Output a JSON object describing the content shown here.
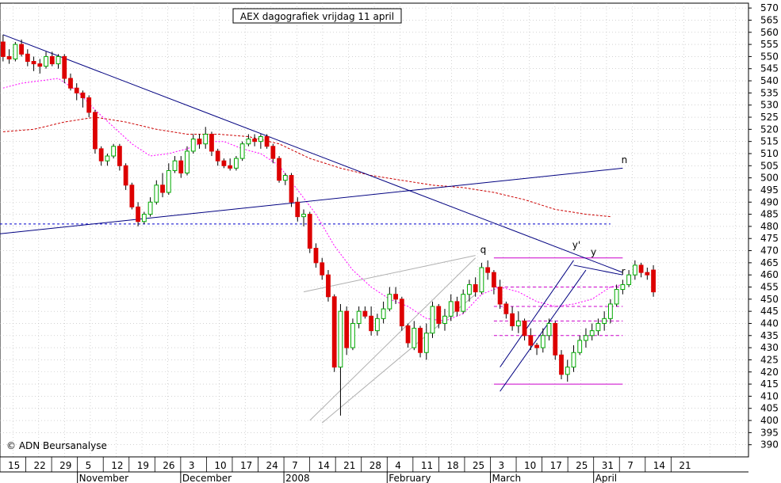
{
  "chart_data": {
    "type": "candlestick",
    "title": "AEX dagografiek vrijdag 11 april",
    "watermark": "© ADN Beursanalyse",
    "y_axis": {
      "min": 385,
      "max": 572,
      "side": "right",
      "ticks": [
        390,
        395,
        400,
        405,
        410,
        415,
        420,
        425,
        430,
        435,
        440,
        445,
        450,
        455,
        460,
        465,
        470,
        475,
        480,
        485,
        490,
        495,
        500,
        505,
        510,
        515,
        520,
        525,
        530,
        535,
        540,
        545,
        550,
        555,
        560,
        565,
        570
      ]
    },
    "x_axis": {
      "day_ticks": [
        "15",
        "22",
        "29",
        "5",
        "12",
        "19",
        "26",
        "3",
        "10",
        "17",
        "24",
        "7",
        "14",
        "21",
        "28",
        "4",
        "11",
        "18",
        "25",
        "3",
        "10",
        "17",
        "25",
        "31",
        "7",
        "14",
        "21"
      ],
      "month_labels": [
        "November",
        "December",
        "2008",
        "February",
        "March",
        "April"
      ],
      "month_start_tick_index": [
        3,
        7,
        11,
        15,
        19,
        23
      ],
      "right_pad_ticks": 2
    },
    "grid": true,
    "colors": {
      "up": "#00aa00",
      "down": "#dd0000",
      "trend": "#000080",
      "ma_short": "#ff00ff",
      "ma_long": "#cc0000",
      "horizontal": "#cc00cc",
      "dotted_blue": "#0000cc",
      "channel": "#b0b0b0"
    },
    "candles_note": "approximate daily OHLC read from chart",
    "candles": [
      [
        556,
        559,
        548,
        550
      ],
      [
        550,
        553,
        547,
        549
      ],
      [
        549,
        556,
        548,
        555
      ],
      [
        555,
        557,
        550,
        551
      ],
      [
        551,
        553,
        546,
        548
      ],
      [
        548,
        550,
        544,
        547
      ],
      [
        547,
        549,
        543,
        546
      ],
      [
        546,
        552,
        545,
        550
      ],
      [
        550,
        552,
        546,
        547
      ],
      [
        547,
        551,
        545,
        550
      ],
      [
        550,
        551,
        539,
        541
      ],
      [
        541,
        543,
        536,
        537
      ],
      [
        537,
        539,
        532,
        535
      ],
      [
        535,
        536,
        529,
        533
      ],
      [
        533,
        534,
        525,
        527
      ],
      [
        527,
        528,
        510,
        512
      ],
      [
        512,
        513,
        505,
        507
      ],
      [
        507,
        510,
        505,
        509
      ],
      [
        509,
        514,
        508,
        513
      ],
      [
        513,
        514,
        503,
        505
      ],
      [
        505,
        506,
        495,
        497
      ],
      [
        497,
        498,
        487,
        488
      ],
      [
        488,
        490,
        480,
        482
      ],
      [
        482,
        486,
        481,
        485
      ],
      [
        485,
        492,
        484,
        490
      ],
      [
        490,
        499,
        489,
        497
      ],
      [
        497,
        502,
        492,
        494
      ],
      [
        494,
        506,
        493,
        503
      ],
      [
        503,
        509,
        502,
        507
      ],
      [
        507,
        509,
        500,
        502
      ],
      [
        502,
        513,
        501,
        511
      ],
      [
        511,
        518,
        510,
        516
      ],
      [
        516,
        518,
        512,
        514
      ],
      [
        514,
        521,
        512,
        518
      ],
      [
        518,
        519,
        509,
        511
      ],
      [
        511,
        512,
        505,
        507
      ],
      [
        507,
        508,
        504,
        505
      ],
      [
        505,
        508,
        503,
        504
      ],
      [
        504,
        509,
        503,
        508
      ],
      [
        508,
        515,
        507,
        514
      ],
      [
        514,
        518,
        513,
        516
      ],
      [
        516,
        518,
        513,
        515
      ],
      [
        515,
        518,
        512,
        517
      ],
      [
        517,
        518,
        512,
        513
      ],
      [
        513,
        514,
        506,
        508
      ],
      [
        508,
        509,
        498,
        499
      ],
      [
        499,
        502,
        497,
        501
      ],
      [
        501,
        502,
        488,
        490
      ],
      [
        490,
        492,
        482,
        484
      ],
      [
        484,
        487,
        480,
        485
      ],
      [
        485,
        486,
        469,
        471
      ],
      [
        471,
        473,
        463,
        465
      ],
      [
        465,
        467,
        458,
        460
      ],
      [
        460,
        462,
        449,
        451
      ],
      [
        451,
        452,
        420,
        422
      ],
      [
        422,
        448,
        402,
        445
      ],
      [
        445,
        447,
        427,
        430
      ],
      [
        430,
        442,
        429,
        440
      ],
      [
        440,
        447,
        438,
        445
      ],
      [
        445,
        447,
        442,
        443
      ],
      [
        443,
        447,
        435,
        437
      ],
      [
        437,
        444,
        435,
        442
      ],
      [
        442,
        449,
        440,
        446
      ],
      [
        446,
        455,
        445,
        452
      ],
      [
        452,
        455,
        448,
        450
      ],
      [
        450,
        451,
        437,
        439
      ],
      [
        439,
        440,
        430,
        432
      ],
      [
        430,
        441,
        429,
        438
      ],
      [
        438,
        439,
        426,
        428
      ],
      [
        428,
        440,
        425,
        436
      ],
      [
        436,
        449,
        434,
        447
      ],
      [
        447,
        448,
        438,
        440
      ],
      [
        440,
        446,
        437,
        443
      ],
      [
        443,
        452,
        441,
        449
      ],
      [
        449,
        451,
        443,
        445
      ],
      [
        445,
        454,
        444,
        452
      ],
      [
        452,
        458,
        449,
        456
      ],
      [
        456,
        459,
        451,
        453
      ],
      [
        453,
        465,
        452,
        463
      ],
      [
        463,
        466,
        458,
        461
      ],
      [
        461,
        462,
        452,
        455
      ],
      [
        455,
        458,
        446,
        448
      ],
      [
        448,
        449,
        442,
        444
      ],
      [
        444,
        447,
        437,
        439
      ],
      [
        439,
        445,
        436,
        441
      ],
      [
        441,
        442,
        433,
        435
      ],
      [
        435,
        438,
        429,
        431
      ],
      [
        431,
        432,
        427,
        430
      ],
      [
        430,
        438,
        428,
        435
      ],
      [
        435,
        442,
        433,
        440
      ],
      [
        440,
        441,
        425,
        427
      ],
      [
        427,
        429,
        417,
        419
      ],
      [
        419,
        425,
        416,
        422
      ],
      [
        422,
        431,
        420,
        428
      ],
      [
        428,
        435,
        427,
        433
      ],
      [
        433,
        438,
        430,
        435
      ],
      [
        435,
        440,
        433,
        437
      ],
      [
        437,
        442,
        435,
        440
      ],
      [
        440,
        445,
        437,
        442
      ],
      [
        442,
        450,
        440,
        448
      ],
      [
        448,
        456,
        447,
        454
      ],
      [
        454,
        458,
        452,
        456
      ],
      [
        456,
        462,
        455,
        460
      ],
      [
        460,
        466,
        458,
        464
      ],
      [
        464,
        465,
        459,
        461
      ],
      [
        461,
        463,
        458,
        460
      ],
      [
        462,
        464,
        451,
        453
      ]
    ],
    "moving_averages": {
      "short": [
        [
          0,
          537
        ],
        [
          3,
          539
        ],
        [
          6,
          540
        ],
        [
          9,
          541
        ],
        [
          12,
          536
        ],
        [
          15,
          528
        ],
        [
          18,
          521
        ],
        [
          21,
          514
        ],
        [
          24,
          509
        ],
        [
          27,
          510
        ],
        [
          30,
          512
        ],
        [
          33,
          515
        ],
        [
          36,
          515
        ],
        [
          39,
          512
        ],
        [
          42,
          510
        ],
        [
          45,
          505
        ],
        [
          48,
          495
        ],
        [
          51,
          485
        ],
        [
          54,
          472
        ],
        [
          57,
          462
        ],
        [
          60,
          455
        ],
        [
          63,
          450
        ],
        [
          66,
          447
        ],
        [
          69,
          442
        ],
        [
          72,
          441
        ],
        [
          75,
          444
        ],
        [
          78,
          452
        ],
        [
          81,
          455
        ],
        [
          84,
          453
        ],
        [
          87,
          449
        ],
        [
          90,
          447
        ],
        [
          93,
          448
        ],
        [
          96,
          450
        ],
        [
          99,
          455
        ],
        [
          101,
          456
        ]
      ],
      "long": [
        [
          0,
          519
        ],
        [
          5,
          520
        ],
        [
          10,
          523
        ],
        [
          15,
          525
        ],
        [
          20,
          523
        ],
        [
          25,
          520
        ],
        [
          30,
          518
        ],
        [
          35,
          518
        ],
        [
          40,
          517
        ],
        [
          45,
          514
        ],
        [
          50,
          508
        ],
        [
          55,
          504
        ],
        [
          60,
          501
        ],
        [
          65,
          499
        ],
        [
          70,
          497
        ],
        [
          75,
          496
        ],
        [
          80,
          494
        ],
        [
          85,
          491
        ],
        [
          90,
          487
        ],
        [
          95,
          485
        ],
        [
          99,
          484
        ]
      ]
    },
    "lines": [
      {
        "label": "",
        "p1": [
          0,
          559
        ],
        "p2": [
          101,
          461
        ]
      },
      {
        "label": "n",
        "p1": [
          -4,
          476
        ],
        "p2": [
          101,
          504
        ]
      },
      {
        "label": "r",
        "p1": [
          93,
          464
        ],
        "p2": [
          101,
          460
        ]
      },
      {
        "label": "q",
        "p1": [
          50,
          400
        ],
        "p2": [
          77,
          467
        ]
      },
      {
        "label": "",
        "p1": [
          49,
          453
        ],
        "p2": [
          77,
          468
        ]
      },
      {
        "label": "",
        "p1": [
          52,
          399
        ],
        "p2": [
          77,
          452
        ]
      },
      {
        "label": "y'",
        "p1": [
          81,
          422
        ],
        "p2": [
          93,
          466
        ]
      },
      {
        "label": "y",
        "p1": [
          81,
          412
        ],
        "p2": [
          95,
          462
        ]
      }
    ],
    "horizontal_levels": [
      {
        "value": 481,
        "style": "dotted",
        "color": "#0000cc"
      },
      {
        "value": 467,
        "style": "solid",
        "color": "#cc00cc"
      },
      {
        "value": 455,
        "style": "dashed",
        "color": "#cc00cc"
      },
      {
        "value": 447,
        "style": "dashed",
        "color": "#cc00cc"
      },
      {
        "value": 441,
        "style": "dashed",
        "color": "#cc00cc"
      },
      {
        "value": 435,
        "style": "dashed",
        "color": "#cc00cc"
      },
      {
        "value": 415,
        "style": "solid",
        "color": "#cc00cc"
      }
    ],
    "line_labels": [
      "n",
      "r",
      "q",
      "y'",
      "y"
    ]
  }
}
